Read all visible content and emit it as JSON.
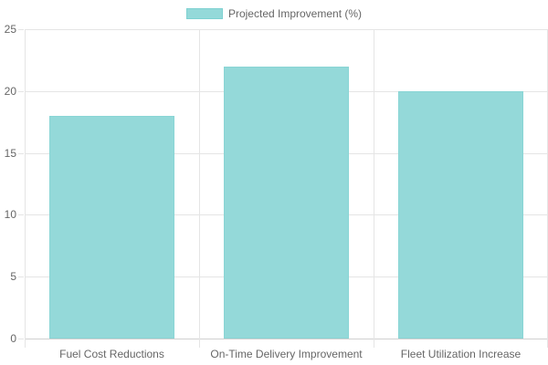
{
  "chart_data": {
    "type": "bar",
    "title": "",
    "xlabel": "",
    "ylabel": "",
    "categories": [
      "Fuel Cost Reductions",
      "On-Time Delivery Improvement",
      "Fleet Utilization Increase"
    ],
    "series": [
      {
        "name": "Projected Improvement (%)",
        "values": [
          18,
          22,
          20
        ],
        "color": "#94d9d9"
      }
    ],
    "ylim": [
      0,
      25
    ],
    "yticks": [
      0,
      5,
      10,
      15,
      20,
      25
    ],
    "grid": true,
    "legend_position": "top"
  },
  "legend": {
    "label": "Projected Improvement (%)",
    "color": "#94d9d9"
  },
  "yaxis": {
    "ticks": [
      "0",
      "5",
      "10",
      "15",
      "20",
      "25"
    ]
  },
  "xaxis": {
    "labels": [
      "Fuel Cost Reductions",
      "On-Time Delivery Improvement",
      "Fleet Utilization Increase"
    ]
  }
}
